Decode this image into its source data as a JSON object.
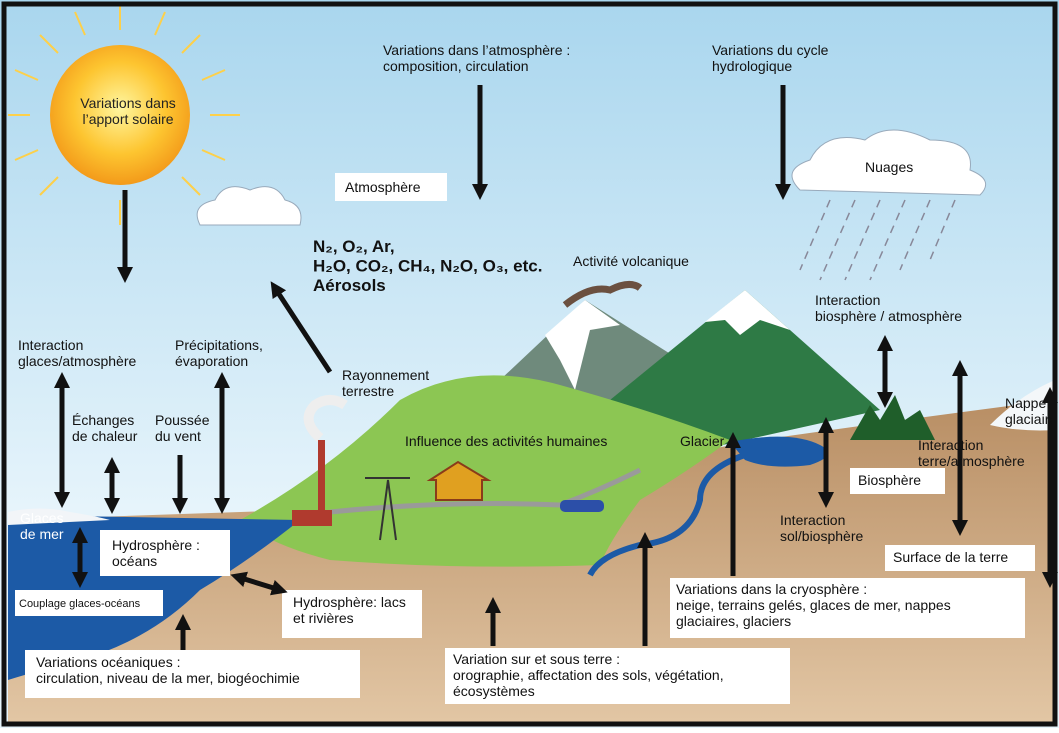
{
  "labels": {
    "solar": [
      "Variations dans",
      "l’apport solaire"
    ],
    "atmosphere_var": [
      "Variations dans l’atmosphère :",
      "composition, circulation"
    ],
    "hydro_cycle": [
      "Variations du cycle",
      "hydrologique"
    ],
    "clouds": "Nuages",
    "atmosphere": "Atmosphère",
    "gases": [
      "N₂, O₂, Ar,",
      "H₂O, CO₂, CH₄, N₂O, O₃, etc.",
      "Aérosols"
    ],
    "volcanic": "Activité volcanique",
    "bio_atm": [
      "Interaction",
      "biosphère / atmosphère"
    ],
    "ice_atm": [
      "Interaction",
      "glaces/atmosphère"
    ],
    "precip": [
      "Précipitations,",
      "évaporation"
    ],
    "radiation": [
      "Rayonnement",
      "terrestre"
    ],
    "heat": [
      "Échanges",
      "de chaleur"
    ],
    "wind": [
      "Poussée",
      "du vent"
    ],
    "human": "Influence des activités humaines",
    "glacier": "Glacier",
    "ice_sheet": [
      "Nappe",
      "glaciaire"
    ],
    "land_atm": [
      "Interaction",
      "terre/atmosphère"
    ],
    "biosphere": "Biosphère",
    "sea_ice": [
      "Glaces",
      "de mer"
    ],
    "oceans": [
      "Hydrosphère :",
      "océans"
    ],
    "soil_bio": [
      "Interaction",
      "sol/biosphère"
    ],
    "land_surface": "Surface de la terre",
    "coupling": "Couplage glaces-océans",
    "lakes": [
      "Hydrosphère: lacs",
      "et rivières"
    ],
    "cryosphere": [
      "Variations dans la cryosphère :",
      "neige, terrains gelés, glaces de mer,  nappes",
      "glaciaires, glaciers"
    ],
    "ocean_var": [
      "Variations océaniques :",
      "circulation, niveau de la mer, biogéochimie"
    ],
    "land_var": [
      "Variation sur et sous terre :",
      "orographie, affectation des sols, végétation,",
      "écosystèmes"
    ]
  }
}
